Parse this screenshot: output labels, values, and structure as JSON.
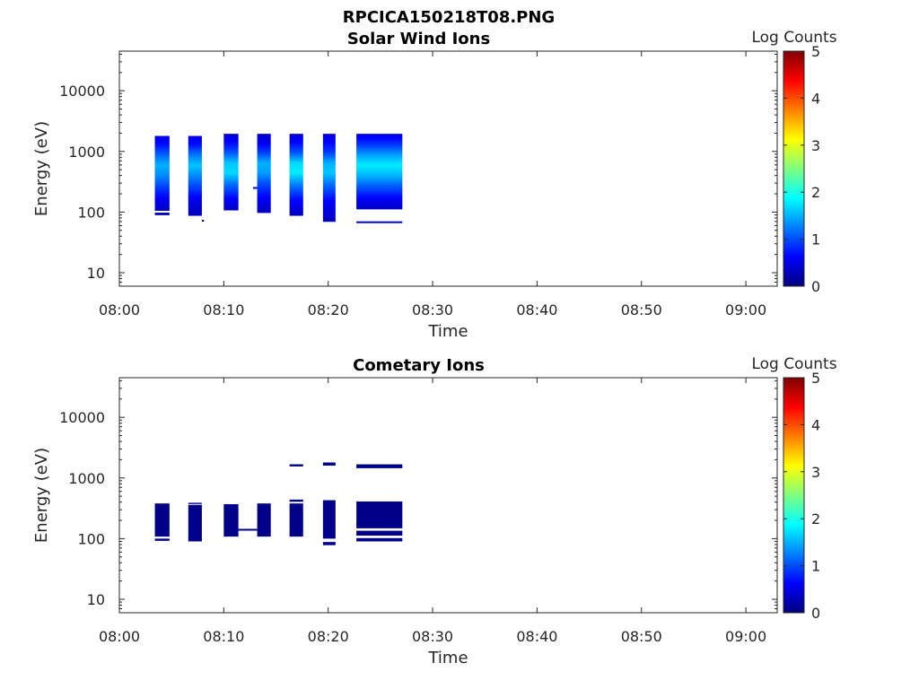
{
  "figure_title": "RPCICA150218T08.PNG",
  "colorbar_colors": [
    "#00007f",
    "#0000ff",
    "#007fff",
    "#00ffff",
    "#7fff7f",
    "#ffff00",
    "#ff7f00",
    "#ff0000",
    "#7f0000"
  ],
  "chart_data": [
    {
      "type": "heatmap",
      "title": "Solar Wind Ions",
      "xlabel": "Time",
      "ylabel": "Energy (eV)",
      "y_scale": "log",
      "ylim": [
        6,
        45000
      ],
      "xlim": [
        "08:00",
        "09:03"
      ],
      "x_ticks": [
        "08:00",
        "08:10",
        "08:20",
        "08:30",
        "08:40",
        "08:50",
        "09:00"
      ],
      "y_ticks": [
        "10",
        "100",
        "1000",
        "10000"
      ],
      "colorbar": {
        "label": "Log Counts",
        "range": [
          0,
          5
        ],
        "ticks": [
          "0",
          "1",
          "2",
          "3",
          "4",
          "5"
        ]
      },
      "blocks": [
        {
          "t_start": "08:03:24",
          "t_end": "08:04:48",
          "e_low": 90,
          "e_high": 1800,
          "gap": [
            95,
            105
          ],
          "profile": [
            [
              90,
              0.3
            ],
            [
              150,
              0.5
            ],
            [
              250,
              0.9
            ],
            [
              400,
              1.3
            ],
            [
              600,
              1.5
            ],
            [
              900,
              1.1
            ],
            [
              1300,
              0.7
            ],
            [
              1800,
              0.5
            ]
          ]
        },
        {
          "t_start": "08:06:36",
          "t_end": "08:07:54",
          "e_low": 88,
          "e_high": 1800,
          "profile": [
            [
              88,
              0.3
            ],
            [
              150,
              0.5
            ],
            [
              250,
              0.9
            ],
            [
              400,
              1.3
            ],
            [
              600,
              1.6
            ],
            [
              900,
              1.2
            ],
            [
              1300,
              0.7
            ],
            [
              1800,
              0.5
            ]
          ]
        },
        {
          "t_start": "08:10:00",
          "t_end": "08:11:24",
          "e_low": 108,
          "e_high": 1950,
          "profile": [
            [
              108,
              0.3
            ],
            [
              180,
              0.7
            ],
            [
              300,
              1.2
            ],
            [
              450,
              1.7
            ],
            [
              650,
              1.6
            ],
            [
              1000,
              1.0
            ],
            [
              1500,
              0.6
            ],
            [
              1950,
              0.4
            ]
          ]
        },
        {
          "t_start": "08:13:12",
          "t_end": "08:14:30",
          "e_low": 98,
          "e_high": 1950,
          "profile": [
            [
              98,
              0.3
            ],
            [
              170,
              0.6
            ],
            [
              300,
              1.0
            ],
            [
              450,
              1.4
            ],
            [
              650,
              1.5
            ],
            [
              1000,
              0.9
            ],
            [
              1500,
              0.5
            ],
            [
              1950,
              0.4
            ]
          ]
        },
        {
          "t_start": "08:16:18",
          "t_end": "08:17:36",
          "e_low": 88,
          "e_high": 1950,
          "profile": [
            [
              88,
              0.3
            ],
            [
              170,
              0.7
            ],
            [
              300,
              1.3
            ],
            [
              450,
              1.8
            ],
            [
              650,
              1.7
            ],
            [
              1000,
              1.0
            ],
            [
              1500,
              0.6
            ],
            [
              1950,
              0.4
            ]
          ]
        },
        {
          "t_start": "08:19:30",
          "t_end": "08:20:42",
          "e_low": 70,
          "e_high": 1950,
          "profile": [
            [
              70,
              0.3
            ],
            [
              150,
              0.6
            ],
            [
              300,
              1.2
            ],
            [
              450,
              1.6
            ],
            [
              650,
              1.5
            ],
            [
              1000,
              0.9
            ],
            [
              1500,
              0.6
            ],
            [
              1950,
              0.4
            ]
          ]
        },
        {
          "t_start": "08:22:42",
          "t_end": "08:27:06",
          "e_low": 95,
          "e_high": 1950,
          "gap": [
            98,
            110
          ],
          "profile": [
            [
              95,
              0.3
            ],
            [
              150,
              0.5
            ],
            [
              250,
              1.0
            ],
            [
              400,
              1.5
            ],
            [
              600,
              1.8
            ],
            [
              900,
              1.4
            ],
            [
              1300,
              0.9
            ],
            [
              1950,
              0.5
            ]
          ]
        }
      ],
      "lines": [
        {
          "t_start": "08:22:42",
          "t_end": "08:27:06",
          "e": 68,
          "value": 0.4
        },
        {
          "t_start": "08:07:54",
          "t_end": "08:08:06",
          "e": 72,
          "value": 0.4
        },
        {
          "t_start": "08:12:48",
          "t_end": "08:13:12",
          "e": 250,
          "value": 0.3
        }
      ]
    },
    {
      "type": "heatmap",
      "title": "Cometary Ions",
      "xlabel": "Time",
      "ylabel": "Energy (eV)",
      "y_scale": "log",
      "ylim": [
        6,
        45000
      ],
      "xlim": [
        "08:00",
        "09:03"
      ],
      "x_ticks": [
        "08:00",
        "08:10",
        "08:20",
        "08:30",
        "08:40",
        "08:50",
        "09:00"
      ],
      "y_ticks": [
        "10",
        "100",
        "1000",
        "10000"
      ],
      "colorbar": {
        "label": "Log Counts",
        "range": [
          0,
          5
        ],
        "ticks": [
          "0",
          "1",
          "2",
          "3",
          "4",
          "5"
        ]
      },
      "blocks": [
        {
          "t_start": "08:03:24",
          "t_end": "08:04:48",
          "e_low": 92,
          "e_high": 380,
          "gap": [
            100,
            108
          ],
          "value": 0.05
        },
        {
          "t_start": "08:06:36",
          "t_end": "08:07:54",
          "e_low": 90,
          "e_high": 360,
          "value": 0.05
        },
        {
          "t_start": "08:10:00",
          "t_end": "08:11:24",
          "e_low": 108,
          "e_high": 370,
          "value": 0.05
        },
        {
          "t_start": "08:13:12",
          "t_end": "08:14:30",
          "e_low": 108,
          "e_high": 380,
          "value": 0.05
        },
        {
          "t_start": "08:16:18",
          "t_end": "08:17:36",
          "e_low": 108,
          "e_high": 380,
          "value": 0.05
        },
        {
          "t_start": "08:19:30",
          "t_end": "08:20:42",
          "e_low": 100,
          "e_high": 430,
          "value": 0.05
        },
        {
          "t_start": "08:22:42",
          "t_end": "08:27:06",
          "e_low": 148,
          "e_high": 410,
          "value": 0.05
        },
        {
          "t_start": "08:22:42",
          "t_end": "08:27:06",
          "e_low": 112,
          "e_high": 135,
          "value": 0.05
        },
        {
          "t_start": "08:22:42",
          "t_end": "08:27:06",
          "e_low": 90,
          "e_high": 102,
          "value": 0.05
        },
        {
          "t_start": "08:22:42",
          "t_end": "08:27:06",
          "e_low": 1450,
          "e_high": 1680,
          "value": 0.05
        },
        {
          "t_start": "08:19:30",
          "t_end": "08:20:42",
          "e_low": 1600,
          "e_high": 1800,
          "value": 0.05
        },
        {
          "t_start": "08:19:30",
          "t_end": "08:20:42",
          "e_low": 78,
          "e_high": 88,
          "value": 0.05
        },
        {
          "t_start": "08:16:18",
          "t_end": "08:17:36",
          "e_low": 1550,
          "e_high": 1680,
          "value": 0.05
        },
        {
          "t_start": "08:16:18",
          "t_end": "08:17:36",
          "e_low": 405,
          "e_high": 440,
          "value": 0.05
        },
        {
          "t_start": "08:06:36",
          "t_end": "08:07:54",
          "e_low": 372,
          "e_high": 390,
          "value": 0.05
        }
      ],
      "lines": [
        {
          "t_start": "08:11:24",
          "t_end": "08:13:12",
          "e": 140,
          "value": 0.05
        }
      ]
    }
  ]
}
